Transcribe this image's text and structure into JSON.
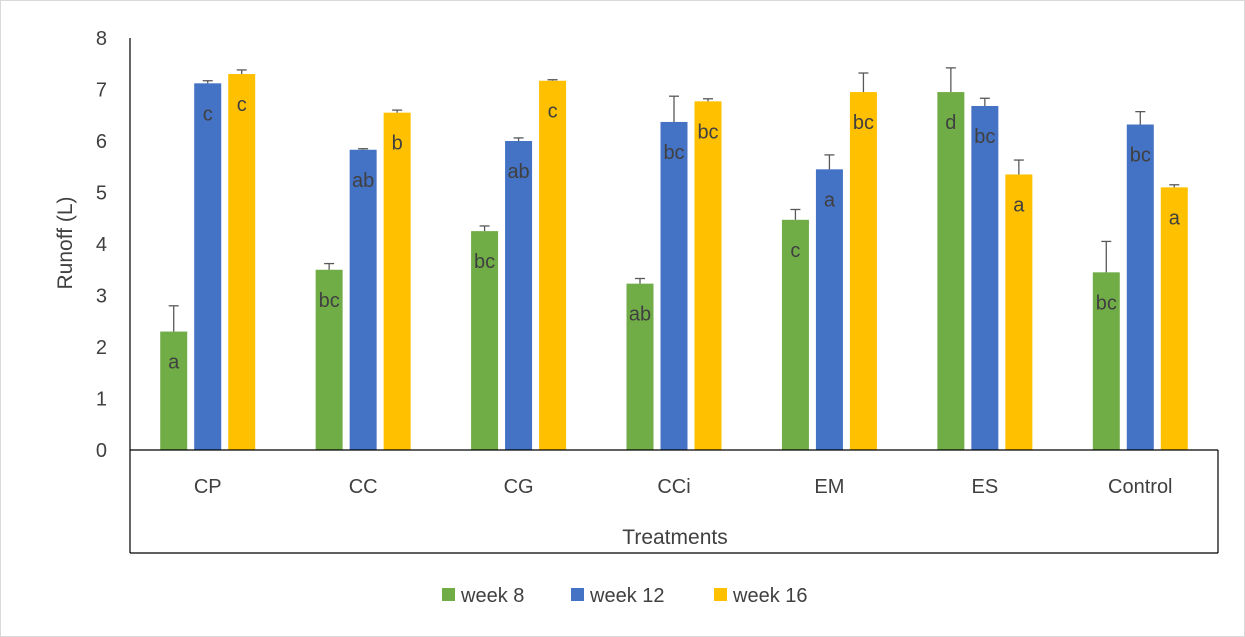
{
  "chart_data": {
    "type": "bar",
    "categories": [
      "CP",
      "CC",
      "CG",
      "CCi",
      "EM",
      "ES",
      "Control"
    ],
    "series": [
      {
        "name": "week 8",
        "color": "#70AD47",
        "values": [
          2.3,
          3.5,
          4.25,
          3.23,
          4.47,
          6.95,
          3.45
        ],
        "errors": [
          0.5,
          0.12,
          0.1,
          0.1,
          0.2,
          0.47,
          0.6
        ],
        "labels": [
          "a",
          "bc",
          "bc",
          "ab",
          "c",
          "d",
          "bc"
        ]
      },
      {
        "name": "week 12",
        "color": "#4472C4",
        "values": [
          7.12,
          5.83,
          6.0,
          6.37,
          5.45,
          6.68,
          6.32
        ],
        "errors": [
          0.05,
          0.02,
          0.06,
          0.5,
          0.28,
          0.15,
          0.25
        ],
        "labels": [
          "c",
          "ab",
          "ab",
          "bc",
          "a",
          "bc",
          "bc"
        ]
      },
      {
        "name": "week 16",
        "color": "#FFC000",
        "values": [
          7.3,
          6.55,
          7.17,
          6.77,
          6.95,
          5.35,
          5.1
        ],
        "errors": [
          0.08,
          0.05,
          0.02,
          0.05,
          0.37,
          0.28,
          0.05
        ],
        "labels": [
          "c",
          "b",
          "c",
          "bc",
          "bc",
          "a",
          "a"
        ]
      }
    ],
    "title": "",
    "xlabel": "Treatments",
    "ylabel": "Runoff (L)",
    "ylim": [
      0,
      8
    ],
    "yticks": [
      0,
      1,
      2,
      3,
      4,
      5,
      6,
      7,
      8
    ],
    "legend_position": "bottom",
    "grid": false
  }
}
